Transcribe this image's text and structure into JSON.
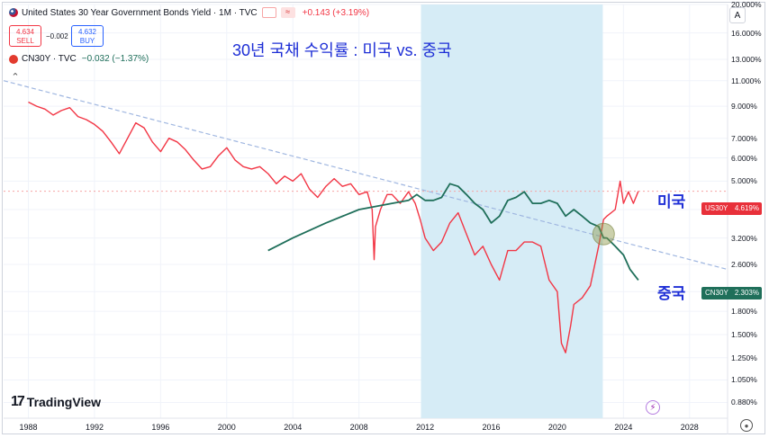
{
  "legend": {
    "us_title": "United States 30 Year Government Bonds Yield · 1M · TVC",
    "us_change": "+0.143 (+3.19%)",
    "sell_price": "4.634",
    "sell_label": "SELL",
    "spread": "−0.002",
    "buy_price": "4.632",
    "buy_label": "BUY",
    "cn_title": "CN30Y · TVC",
    "cn_change": "−0.032 (−1.37%)"
  },
  "annotations": {
    "title": "30년 국채 수익률 : 미국  vs. 중국",
    "us_label": "미국",
    "cn_label": "중국"
  },
  "tags": {
    "us_symbol": "US30Y",
    "us_value": "4.619%",
    "cn_symbol": "CN30Y",
    "cn_value": "2.303%"
  },
  "branding": {
    "logo_text": "TradingView",
    "logo_mark": "17"
  },
  "colors": {
    "us_line": "#f23645",
    "cn_line": "#1f6f5a",
    "trend_line": "#9fb6e0",
    "highlight": "#d6ecf6",
    "title_text": "#1e2fd6"
  },
  "icons": [
    "us-flag-icon",
    "china-flag-icon",
    "tradingview-logo-icon",
    "lightning-icon",
    "settings-icon",
    "auto-scale-icon"
  ],
  "chart_data": {
    "type": "line",
    "scale": "log",
    "x_range": [
      1986.5,
      2030.3
    ],
    "y_range": [
      0.8,
      20.0
    ],
    "y_ticks": [
      "20.000%",
      "16.000%",
      "13.000%",
      "11.000%",
      "9.000%",
      "7.000%",
      "6.000%",
      "5.000%",
      "4.000%",
      "3.200%",
      "2.600%",
      "2.100%",
      "1.800%",
      "1.500%",
      "1.250%",
      "1.050%",
      "0.880%"
    ],
    "y_tick_values": [
      20,
      16,
      13,
      11,
      9,
      7,
      6,
      5,
      4,
      3.2,
      2.6,
      2.1,
      1.8,
      1.5,
      1.25,
      1.05,
      0.88
    ],
    "x_ticks": [
      "1988",
      "1992",
      "1996",
      "2000",
      "2004",
      "2008",
      "2012",
      "2016",
      "2020",
      "2024",
      "2028"
    ],
    "x_tick_values": [
      1988,
      1992,
      1996,
      2000,
      2004,
      2008,
      2012,
      2016,
      2020,
      2024,
      2028
    ],
    "highlight_range": [
      2011.75,
      2022.75
    ],
    "series": [
      {
        "name": "US30Y",
        "x": [
          1988.0,
          1988.5,
          1989.0,
          1989.5,
          1990.0,
          1990.5,
          1991.0,
          1991.5,
          1992.0,
          1992.5,
          1993.0,
          1993.5,
          1994.0,
          1994.5,
          1995.0,
          1995.5,
          1996.0,
          1996.5,
          1997.0,
          1997.5,
          1998.0,
          1998.5,
          1999.0,
          1999.5,
          2000.0,
          2000.5,
          2001.0,
          2001.5,
          2002.0,
          2002.5,
          2003.0,
          2003.5,
          2004.0,
          2004.5,
          2005.0,
          2005.5,
          2006.0,
          2006.5,
          2007.0,
          2007.5,
          2008.0,
          2008.5,
          2008.8,
          2008.92,
          2009.0,
          2009.3,
          2009.7,
          2010.0,
          2010.5,
          2011.0,
          2011.4,
          2011.7,
          2012.0,
          2012.5,
          2013.0,
          2013.5,
          2014.0,
          2014.5,
          2015.0,
          2015.5,
          2016.0,
          2016.5,
          2017.0,
          2017.5,
          2018.0,
          2018.5,
          2019.0,
          2019.5,
          2020.0,
          2020.25,
          2020.5,
          2020.8,
          2021.0,
          2021.5,
          2022.0,
          2022.5,
          2022.8,
          2023.0,
          2023.5,
          2023.8,
          2024.0,
          2024.3,
          2024.6,
          2024.9
        ],
        "values": [
          9.3,
          9.0,
          8.8,
          8.4,
          8.7,
          8.9,
          8.3,
          8.1,
          7.8,
          7.4,
          6.8,
          6.2,
          7.0,
          7.9,
          7.6,
          6.8,
          6.3,
          7.0,
          6.8,
          6.4,
          5.9,
          5.5,
          5.6,
          6.1,
          6.5,
          5.9,
          5.6,
          5.5,
          5.6,
          5.3,
          4.9,
          5.2,
          5.0,
          5.3,
          4.7,
          4.4,
          4.8,
          5.1,
          4.8,
          4.9,
          4.5,
          4.6,
          4.0,
          2.7,
          3.5,
          4.0,
          4.5,
          4.5,
          4.2,
          4.6,
          4.2,
          3.7,
          3.2,
          2.9,
          3.1,
          3.6,
          3.9,
          3.3,
          2.8,
          3.0,
          2.6,
          2.3,
          2.9,
          2.9,
          3.1,
          3.1,
          3.0,
          2.3,
          2.1,
          1.4,
          1.3,
          1.6,
          1.9,
          2.0,
          2.2,
          3.0,
          3.7,
          3.8,
          4.0,
          5.0,
          4.2,
          4.6,
          4.2,
          4.62
        ]
      },
      {
        "name": "CN30Y",
        "x": [
          2002.5,
          2004.0,
          2006.0,
          2008.0,
          2010.0,
          2011.0,
          2011.5,
          2012.0,
          2012.5,
          2013.0,
          2013.5,
          2014.0,
          2014.5,
          2015.0,
          2015.5,
          2016.0,
          2016.5,
          2017.0,
          2017.5,
          2018.0,
          2018.5,
          2019.0,
          2019.5,
          2020.0,
          2020.5,
          2021.0,
          2021.5,
          2022.0,
          2022.5,
          2022.8,
          2023.0,
          2023.5,
          2024.0,
          2024.4,
          2024.9
        ],
        "values": [
          2.9,
          3.2,
          3.6,
          4.0,
          4.2,
          4.3,
          4.5,
          4.3,
          4.3,
          4.4,
          4.9,
          4.8,
          4.5,
          4.2,
          4.0,
          3.6,
          3.8,
          4.3,
          4.4,
          4.6,
          4.2,
          4.2,
          4.3,
          4.2,
          3.8,
          4.0,
          3.8,
          3.6,
          3.5,
          3.2,
          3.2,
          3.0,
          2.8,
          2.5,
          2.3
        ]
      },
      {
        "name": "",
        "x": [
          1986.5,
          2030.3
        ],
        "values": [
          11.0,
          2.5
        ]
      }
    ]
  }
}
